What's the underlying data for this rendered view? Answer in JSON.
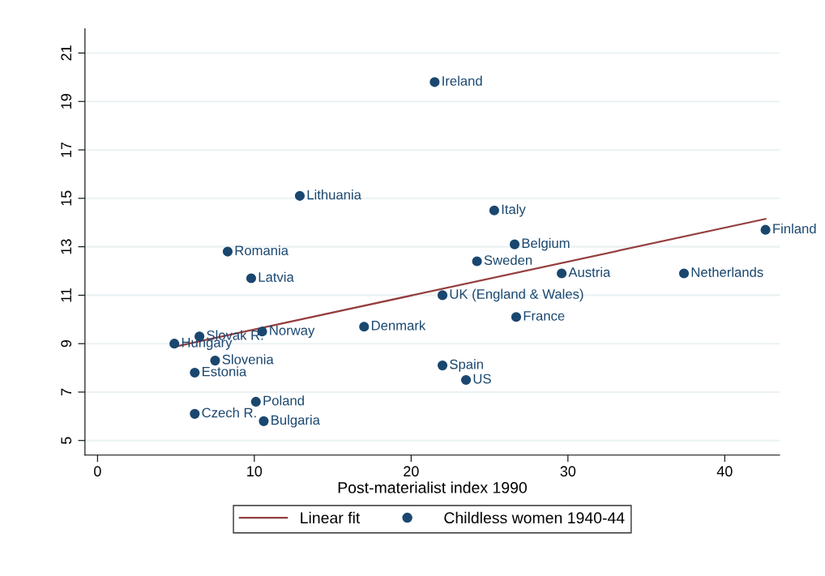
{
  "chart_data": {
    "type": "scatter",
    "xlabel": "Post-materialist index 1990",
    "xlim": [
      -0.8,
      43.5
    ],
    "xticks": [
      0,
      10,
      20,
      30,
      40
    ],
    "ylim": [
      4.4,
      22
    ],
    "yticks": [
      5,
      7,
      9,
      11,
      13,
      15,
      17,
      19,
      21
    ],
    "grid": "y",
    "legend": "bottom",
    "series": [
      {
        "name": "Linear fit",
        "type": "line",
        "color": "#943e3e",
        "x": [
          4.9,
          42.6
        ],
        "values": [
          8.87,
          14.15
        ]
      },
      {
        "name": "Childless women 1940-44",
        "marker": "circle",
        "color": "#1a476f",
        "x": [
          21.5,
          12.9,
          25.3,
          26.6,
          42.6,
          8.3,
          24.2,
          29.6,
          37.4,
          9.8,
          22.0,
          26.7,
          17.0,
          10.5,
          6.5,
          4.9,
          7.5,
          22.0,
          6.2,
          23.5,
          10.1,
          6.2,
          10.6
        ],
        "values": [
          19.8,
          15.1,
          14.5,
          13.1,
          13.7,
          12.8,
          12.4,
          11.9,
          11.9,
          11.7,
          11.0,
          10.1,
          9.7,
          9.5,
          9.3,
          9.0,
          8.3,
          8.1,
          7.8,
          7.5,
          6.6,
          6.1,
          5.8
        ]
      }
    ],
    "annotations": [
      {
        "text": "Ireland",
        "x": 21.5,
        "y": 19.8
      },
      {
        "text": "Lithuania",
        "x": 12.9,
        "y": 15.1
      },
      {
        "text": "Italy",
        "x": 25.3,
        "y": 14.5
      },
      {
        "text": "Belgium",
        "x": 26.6,
        "y": 13.1
      },
      {
        "text": "Finland",
        "x": 42.6,
        "y": 13.7
      },
      {
        "text": "Romania",
        "x": 8.3,
        "y": 12.8
      },
      {
        "text": "Sweden",
        "x": 24.2,
        "y": 12.4
      },
      {
        "text": "Austria",
        "x": 29.6,
        "y": 11.9
      },
      {
        "text": "Netherlands",
        "x": 37.4,
        "y": 11.9
      },
      {
        "text": "Latvia",
        "x": 9.8,
        "y": 11.7
      },
      {
        "text": "UK (England & Wales)",
        "x": 22.0,
        "y": 11.0
      },
      {
        "text": "France",
        "x": 26.7,
        "y": 10.1
      },
      {
        "text": "Denmark",
        "x": 17.0,
        "y": 9.7
      },
      {
        "text": "Norway",
        "x": 10.5,
        "y": 9.5
      },
      {
        "text": "Slovak R.",
        "x": 6.5,
        "y": 9.3
      },
      {
        "text": "Hungary",
        "x": 4.9,
        "y": 9.0
      },
      {
        "text": "Slovenia",
        "x": 7.5,
        "y": 8.3
      },
      {
        "text": "Spain",
        "x": 22.0,
        "y": 8.1
      },
      {
        "text": "Estonia",
        "x": 6.2,
        "y": 7.8
      },
      {
        "text": "US",
        "x": 23.5,
        "y": 7.5
      },
      {
        "text": "Poland",
        "x": 10.1,
        "y": 6.6
      },
      {
        "text": "Czech R.",
        "x": 6.2,
        "y": 6.1
      },
      {
        "text": "Bulgaria",
        "x": 10.6,
        "y": 5.8
      }
    ]
  }
}
